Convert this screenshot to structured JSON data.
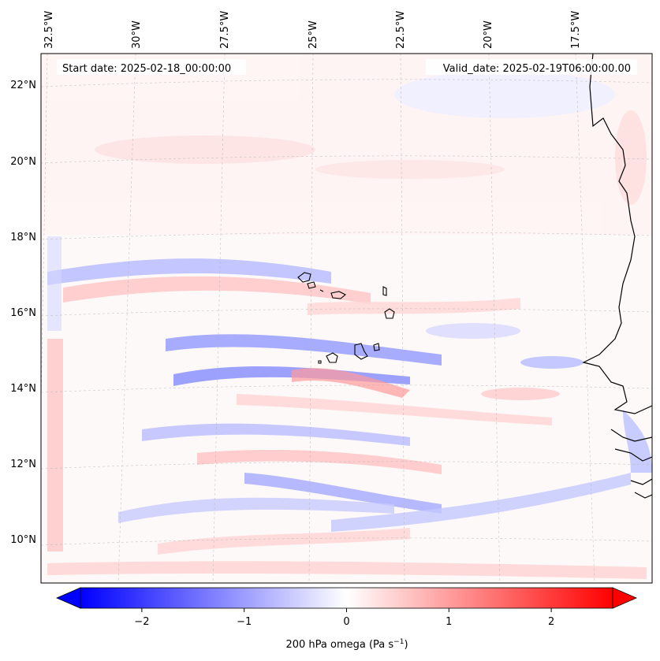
{
  "map": {
    "start_date": "Start date: 2025-02-18_00:00:00",
    "valid_date": "Valid_date: 2025-02-19T06:00:00.00",
    "lon_labels": [
      "32.5°W",
      "30°W",
      "27.5°W",
      "25°W",
      "22.5°W",
      "20°W",
      "17.5°W"
    ],
    "lat_labels": [
      "22°N",
      "20°N",
      "18°N",
      "16°N",
      "14°N",
      "12°N",
      "10°N"
    ],
    "colorbar": {
      "label": "200 hPa omega (Pa s",
      "label_sup": "−1",
      "label_close": ")",
      "min": -2.6,
      "max": 2.6,
      "ticks": [
        {
          "value": -2,
          "text": "−2"
        },
        {
          "value": -1,
          "text": "−1"
        },
        {
          "value": 0,
          "text": "0"
        },
        {
          "value": 1,
          "text": "1"
        },
        {
          "value": 2,
          "text": "2"
        }
      ],
      "negative_color": "#0000ff",
      "zero_color": "#ffffff",
      "positive_color": "#ff0000"
    }
  }
}
